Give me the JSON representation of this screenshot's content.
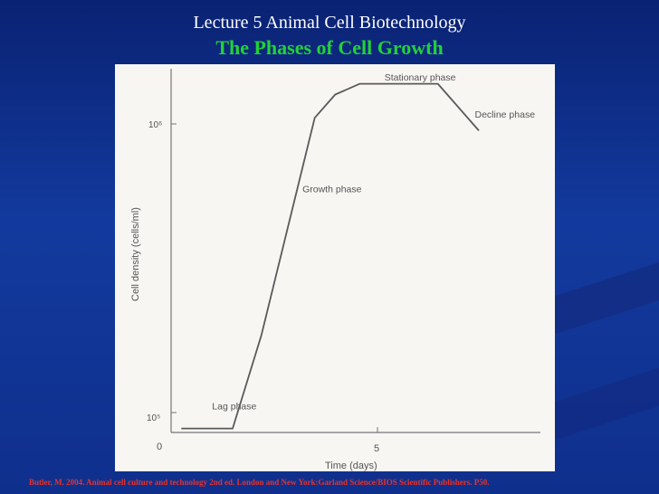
{
  "slide": {
    "lecture_title": "Lecture 5 Animal Cell Biotechnology",
    "heading": "The Phases of Cell Growth",
    "citation": "Butler, M. 2004. Animal cell culture and technology 2nd ed. London and New York:Garland Science/BIOS Scientific Publishers. P50.",
    "colors": {
      "background": "#0f2f8c",
      "heading": "#22d13a",
      "citation": "#e8322a"
    }
  },
  "chart_data": {
    "type": "line",
    "xlabel": "Time (days)",
    "ylabel": "Cell density (cells/ml)",
    "x_ticks": [
      "0",
      "5"
    ],
    "y_ticks": [
      "10⁵",
      "10⁶"
    ],
    "ylog": true,
    "xlim": [
      0,
      9
    ],
    "ylim": [
      0.98,
      6.15
    ],
    "x": [
      0.25,
      1.5,
      2.2,
      3.5,
      4.0,
      4.6,
      6.5,
      7.5
    ],
    "y": [
      1.0,
      1.0,
      1.6,
      4.8,
      5.4,
      5.7,
      5.7,
      4.5
    ],
    "annotations": [
      {
        "text": "Lag phase",
        "x": 1.0,
        "y": 1.1
      },
      {
        "text": "Growth phase",
        "x": 3.2,
        "y": 3.3
      },
      {
        "text": "Stationary phase",
        "x": 5.2,
        "y": 5.8
      },
      {
        "text": "Decline phase",
        "x": 7.4,
        "y": 4.8
      }
    ],
    "grid": false
  }
}
